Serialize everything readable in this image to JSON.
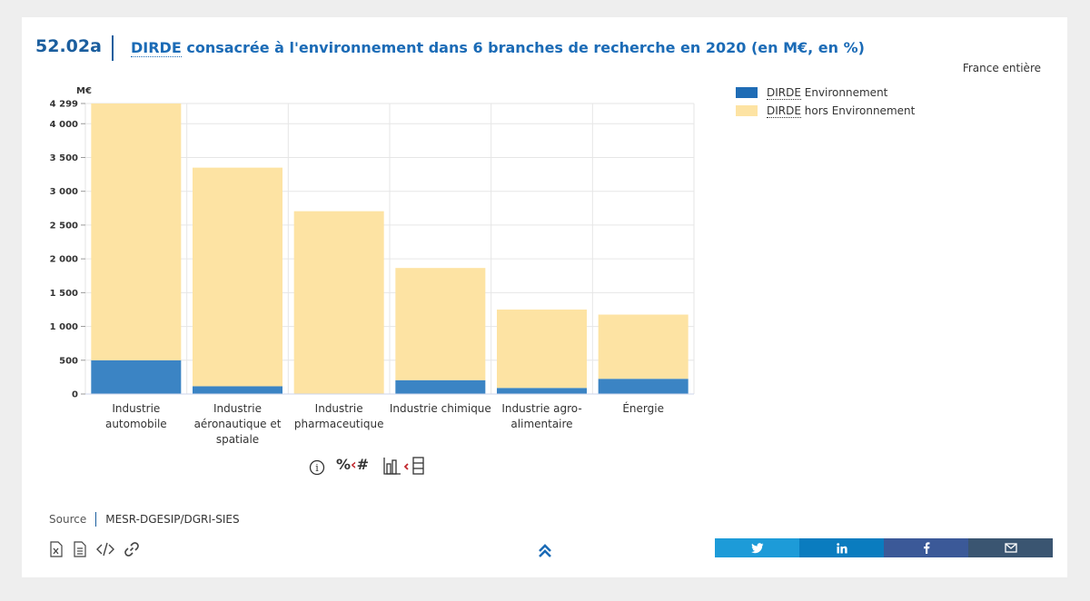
{
  "header": {
    "figure_number": "52.02a",
    "title_abbr": "DIRDE",
    "title_rest": " consacrée à l'environnement dans 6 branches de recherche en 2020 (en M€, en %)",
    "scope": "France entière"
  },
  "legend": {
    "items": [
      {
        "abbr": "DIRDE",
        "rest": " Environnement",
        "color": "#1f6cb5"
      },
      {
        "abbr": "DIRDE",
        "rest": " hors Environnement",
        "color": "#fde3a3"
      }
    ]
  },
  "chart_data": {
    "type": "bar",
    "stacked": true,
    "title": "DIRDE consacrée à l'environnement dans 6 branches de recherche en 2020 (en M€, en %)",
    "ylabel": "M€",
    "ylim": [
      0,
      4299
    ],
    "yticks": [
      0,
      500,
      1000,
      1500,
      2000,
      2500,
      3000,
      3500,
      4000,
      4299
    ],
    "ytick_labels": [
      "0",
      "500",
      "1 000",
      "1 500",
      "2 000",
      "2 500",
      "3 000",
      "3 500",
      "4 000",
      "4 299"
    ],
    "grid": true,
    "legend_position": "top-right",
    "categories": [
      [
        "Industrie",
        "automobile"
      ],
      [
        "Industrie",
        "aéronautique et",
        "spatiale"
      ],
      [
        "Industrie",
        "pharmaceutique"
      ],
      [
        "Industrie chimique"
      ],
      [
        "Industrie agro-",
        "alimentaire"
      ],
      [
        "Énergie"
      ]
    ],
    "series": [
      {
        "name": "DIRDE Environnement",
        "color": "#3b84c4",
        "values": [
          500,
          115,
          0,
          205,
          90,
          225
        ]
      },
      {
        "name": "DIRDE hors Environnement",
        "color": "#fde3a3",
        "values": [
          3799,
          3235,
          2705,
          1660,
          1160,
          950
        ]
      }
    ]
  },
  "toolbar": {
    "info_glyph": "i",
    "percent_label": "%",
    "hash_label": "#"
  },
  "source": {
    "label": "Source",
    "value": "MESR-DGESIP/DGRI-SIES"
  },
  "share": {
    "buttons": [
      {
        "name": "twitter",
        "color": "#1d9bd8"
      },
      {
        "name": "linkedin",
        "color": "#0a7cbf"
      },
      {
        "name": "facebook",
        "color": "#3b5998"
      },
      {
        "name": "email",
        "color": "#3a5571"
      }
    ]
  }
}
